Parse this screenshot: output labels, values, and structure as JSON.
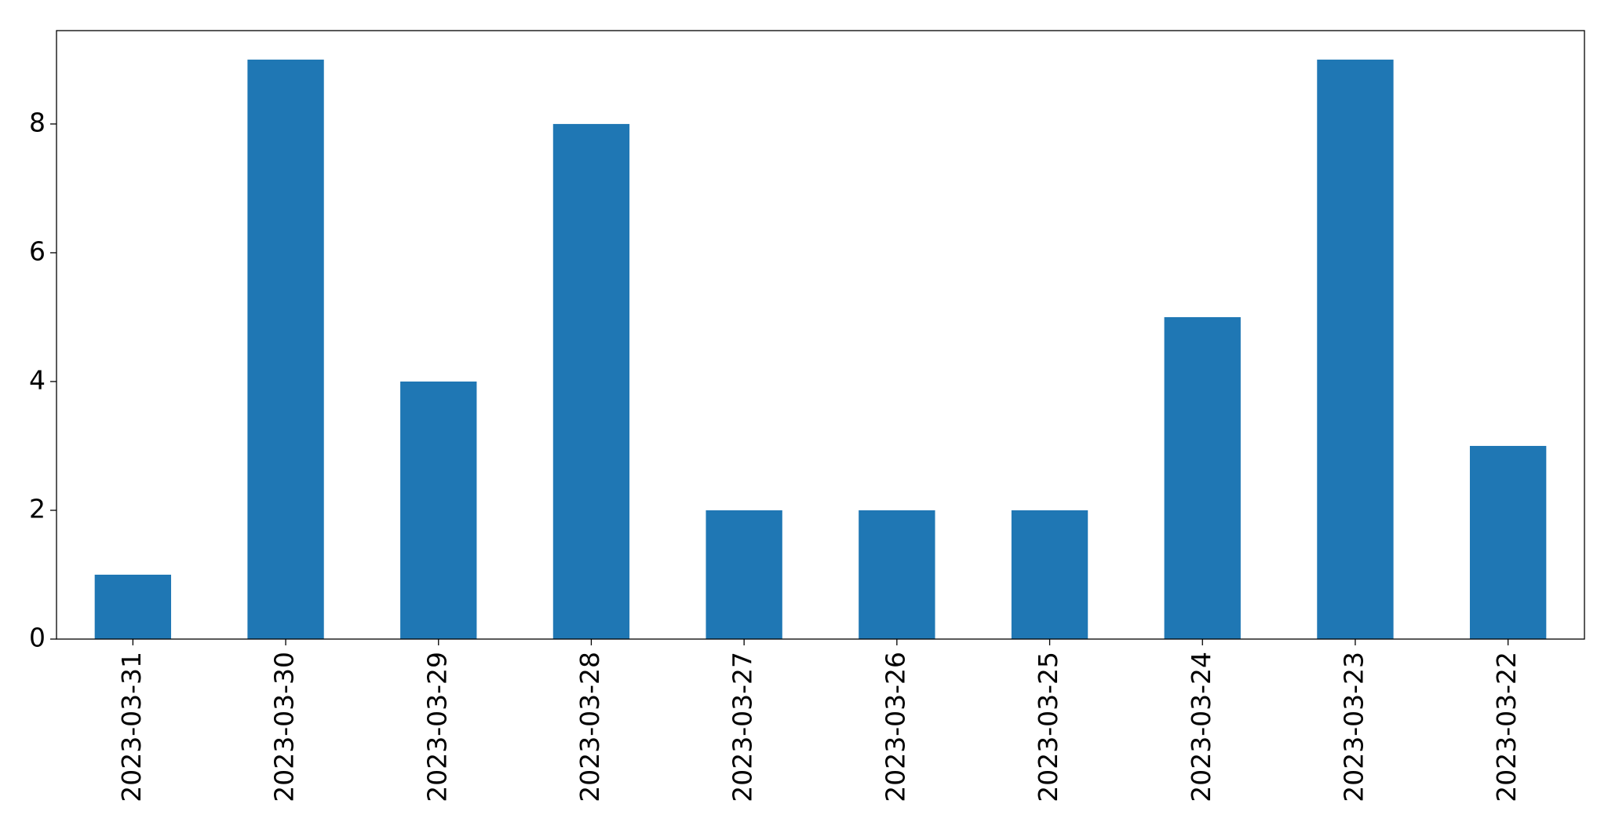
{
  "chart_data": {
    "type": "bar",
    "categories": [
      "2023-03-31",
      "2023-03-30",
      "2023-03-29",
      "2023-03-28",
      "2023-03-27",
      "2023-03-26",
      "2023-03-25",
      "2023-03-24",
      "2023-03-23",
      "2023-03-22"
    ],
    "values": [
      1,
      9,
      4,
      8,
      2,
      2,
      2,
      5,
      9,
      3
    ],
    "color": "#1f77b4",
    "ylim": [
      0,
      9.45
    ],
    "yticks": [
      0,
      2,
      4,
      6,
      8
    ],
    "grid": false
  }
}
